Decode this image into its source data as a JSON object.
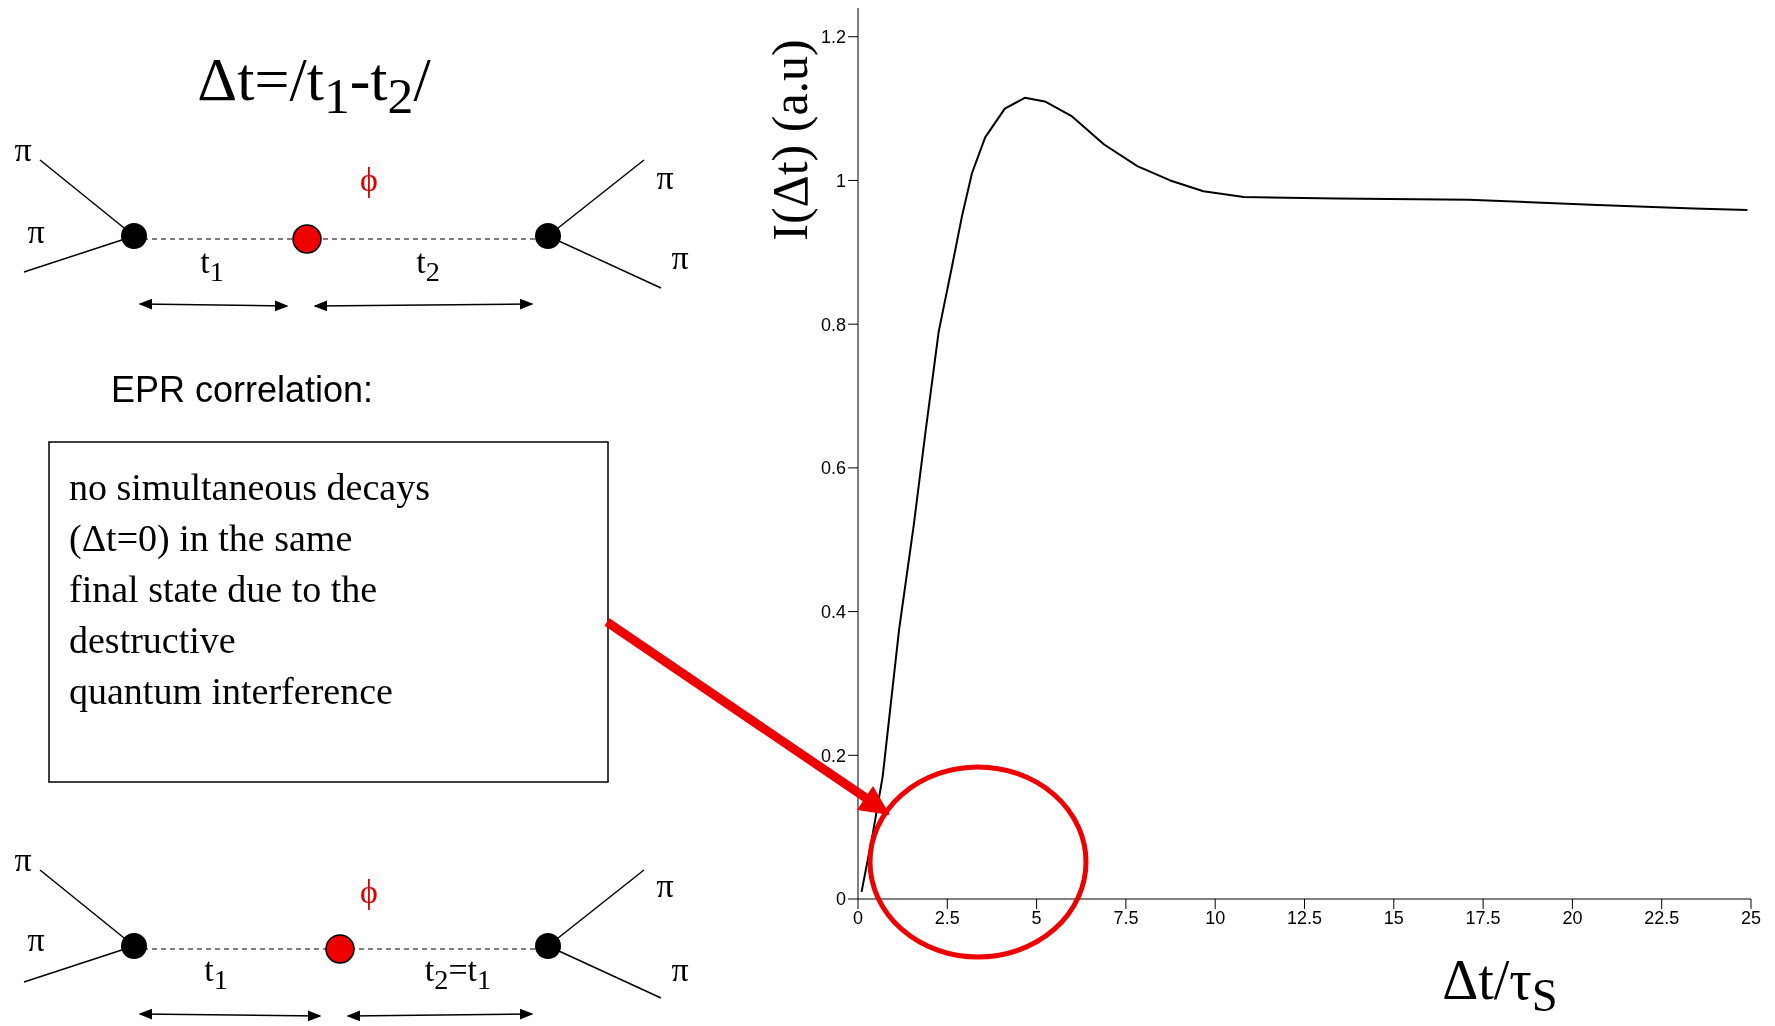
{
  "chart_data": {
    "type": "line",
    "xlabel": "Δt/τ$_{S}$",
    "ylabel": "I(Δt) (a.u)",
    "x": [
      0.1,
      0.41,
      0.69,
      1.15,
      1.56,
      1.89,
      2.26,
      2.63,
      2.91,
      3.19,
      3.56,
      4.11,
      4.67,
      5.23,
      5.97,
      6.89,
      7.82,
      8.74,
      9.67,
      10.8,
      13.4,
      17.1,
      20.7,
      23.4,
      24.9
    ],
    "values": [
      0.01,
      0.09,
      0.17,
      0.375,
      0.52,
      0.65,
      0.79,
      0.88,
      0.95,
      1.01,
      1.06,
      1.1,
      1.115,
      1.11,
      1.09,
      1.05,
      1.02,
      1.0,
      0.985,
      0.977,
      0.975,
      0.973,
      0.966,
      0.961,
      0.959
    ],
    "color": "#000000",
    "xlim": [
      0,
      25
    ],
    "ylim": [
      0,
      1.24
    ],
    "xticks": [
      0,
      2.5,
      5,
      7.5,
      10,
      12.5,
      15,
      17.5,
      20,
      22.5,
      25
    ],
    "yticks": [
      0,
      0.2,
      0.4,
      0.6,
      0.8,
      1,
      1.2
    ],
    "grid": false,
    "marker": "none",
    "line_style": "solid",
    "annotations": [
      "Δt=/t$_{1}$-t$_{2}$/",
      "π",
      "π",
      "π",
      "π",
      "ϕ",
      "t$_{1}$",
      "t$_{2}$",
      "EPR correlation:",
      "no simultaneous decays\n(Δt=0) in the same\nfinal state due to the\ndestructive\nquantum interference",
      "π",
      "π",
      "π",
      "π",
      "ϕ",
      "t$_{1}$",
      "t$_{2}$=t$_{1}$"
    ]
  }
}
